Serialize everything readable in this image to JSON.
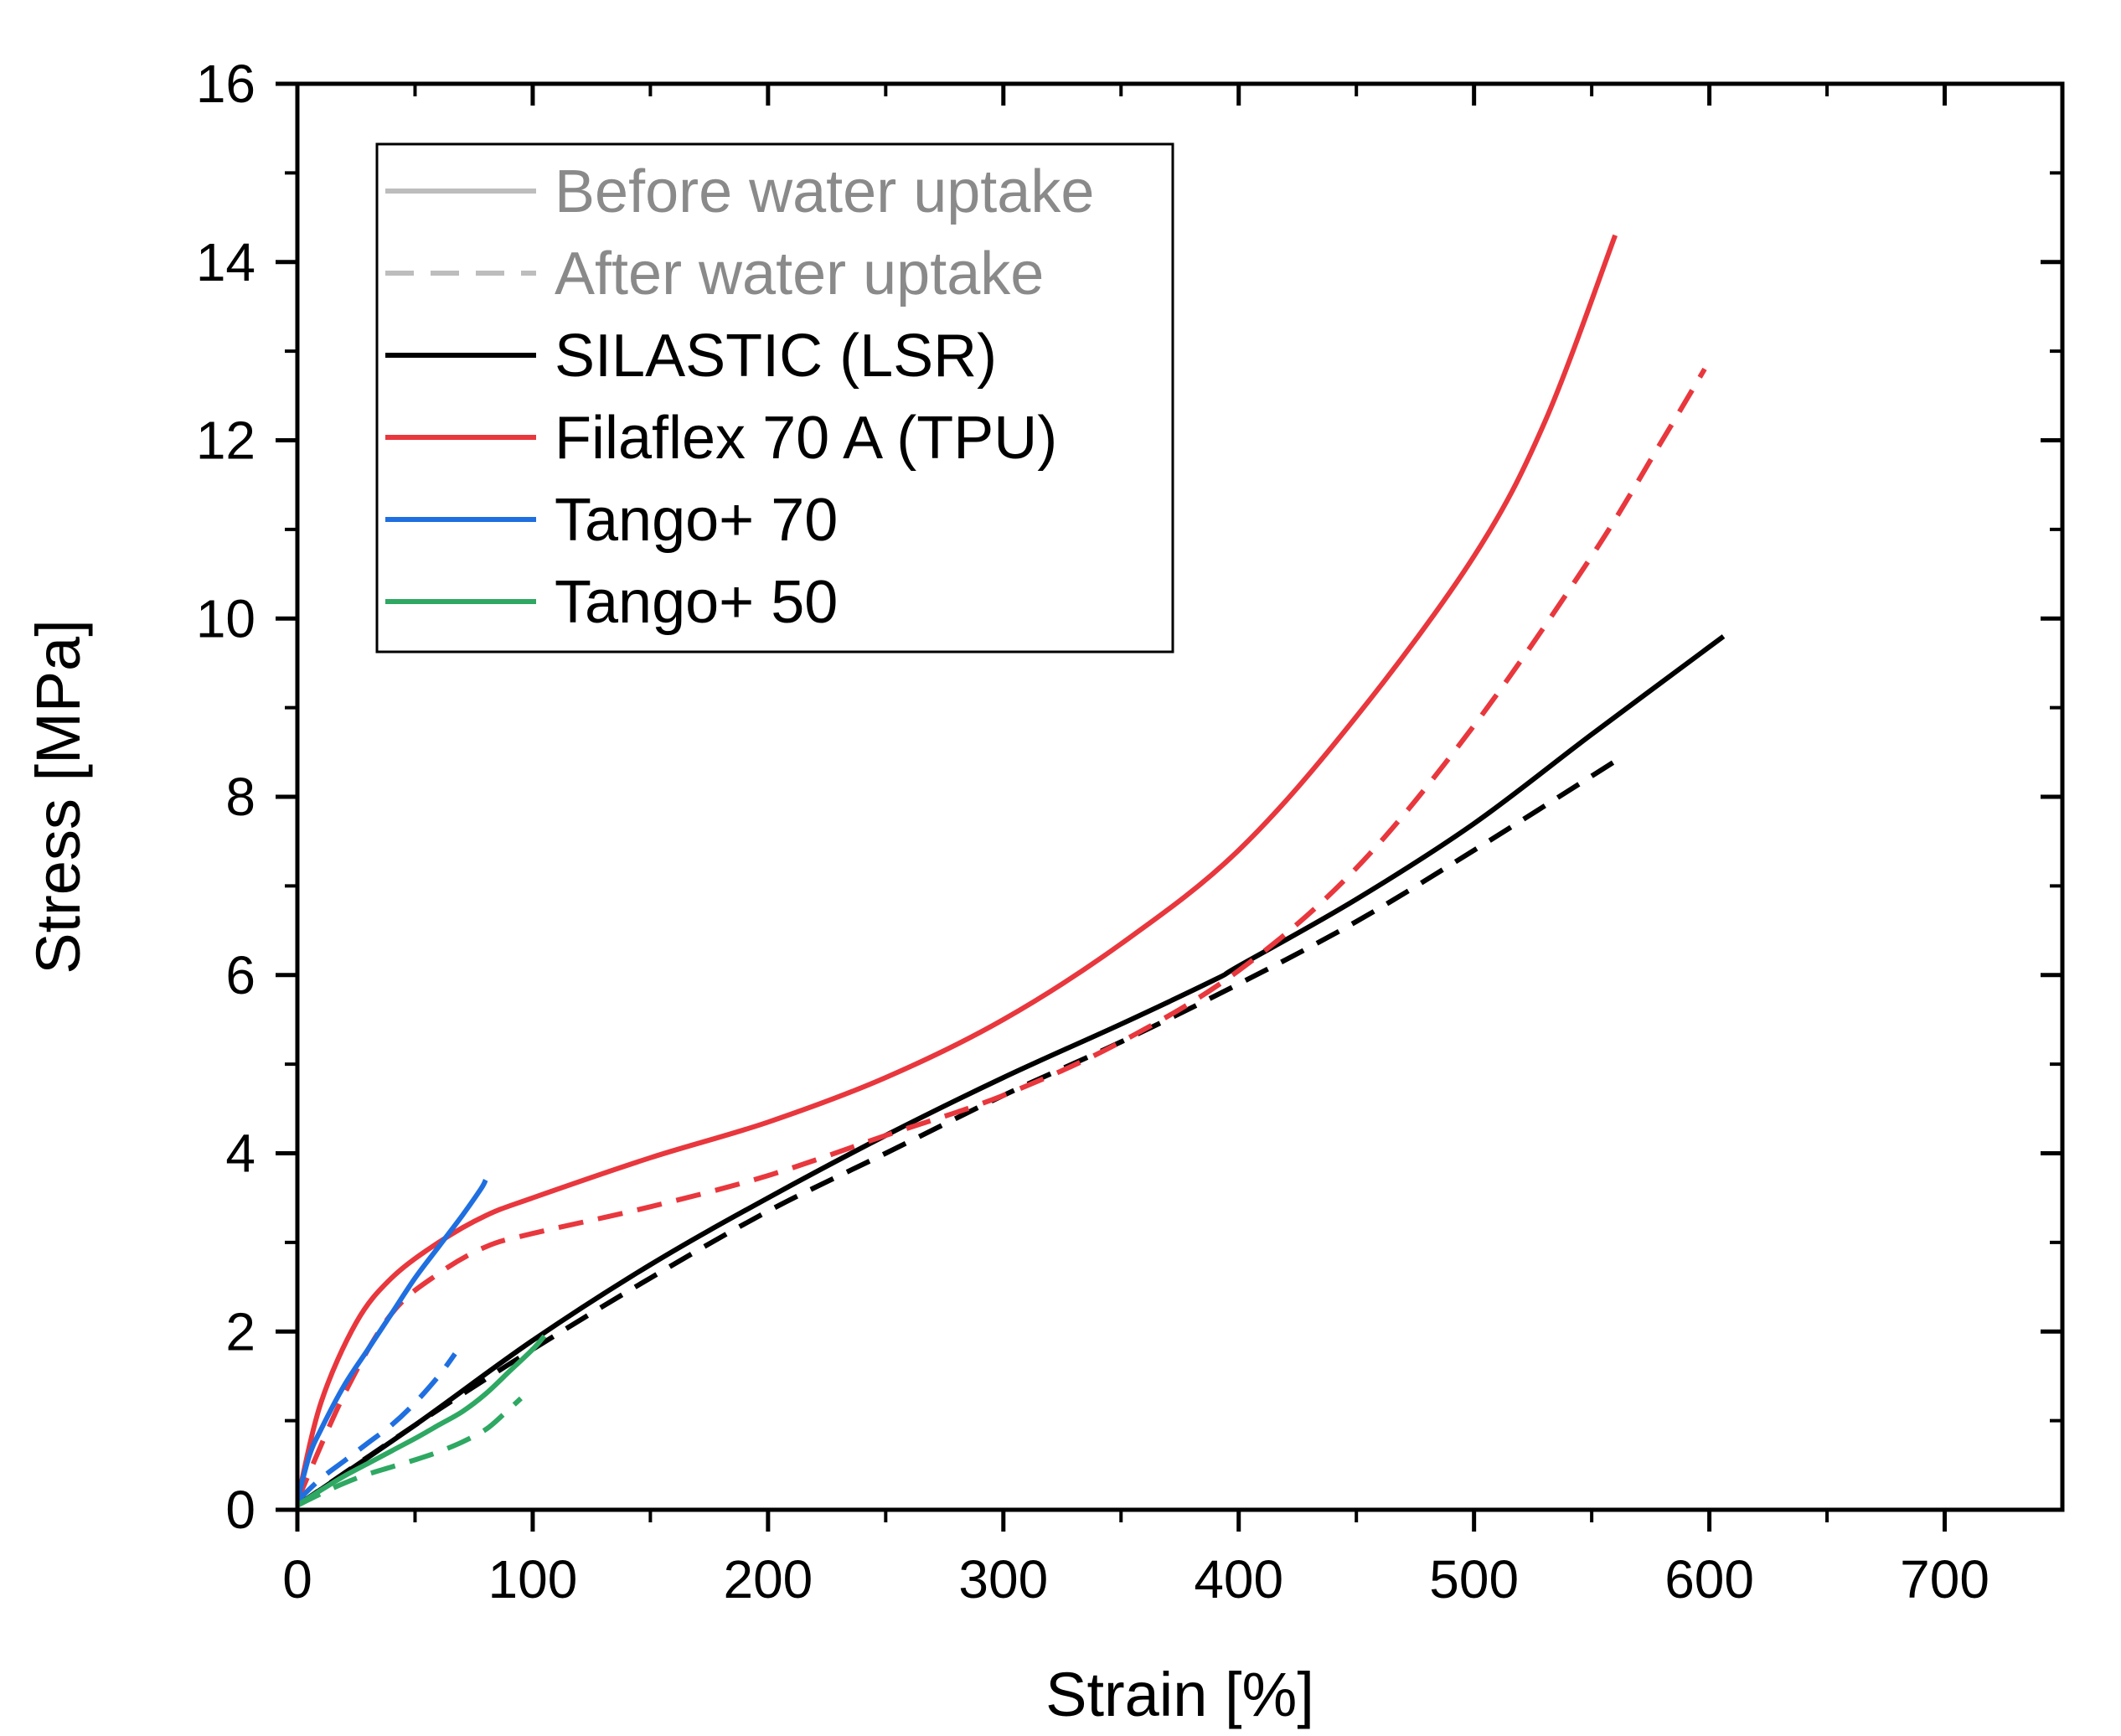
{
  "chart_data": {
    "type": "line",
    "title": "",
    "xlabel": "Strain [%]",
    "ylabel": "Stress [MPa]",
    "xlim": [
      0,
      750
    ],
    "ylim": [
      0,
      16
    ],
    "xticks": [
      0,
      100,
      200,
      300,
      400,
      500,
      600,
      700
    ],
    "yticks": [
      0,
      2,
      4,
      6,
      8,
      10,
      12,
      14,
      16
    ],
    "grid": false,
    "legend_position": "top-left",
    "legend": [
      {
        "label": "Before water uptake",
        "color": "#bdbdbd",
        "style": "solid",
        "muted": true
      },
      {
        "label": "After water uptake",
        "color": "#bdbdbd",
        "style": "dashed",
        "muted": true
      },
      {
        "label": "SILASTIC (LSR)",
        "color": "#000000",
        "style": "solid",
        "muted": false
      },
      {
        "label": "Filaflex 70 A (TPU)",
        "color": "#e8373d",
        "style": "solid",
        "muted": false
      },
      {
        "label": "Tango+ 70",
        "color": "#1f6fe0",
        "style": "solid",
        "muted": false
      },
      {
        "label": "Tango+ 50",
        "color": "#2ea862",
        "style": "solid",
        "muted": false
      }
    ],
    "series": [
      {
        "name": "SILASTIC (LSR) - before water uptake",
        "color": "#000000",
        "dashed": false,
        "x": [
          0,
          50,
          100,
          150,
          200,
          250,
          300,
          350,
          390,
          400,
          450,
          500,
          550,
          606
        ],
        "y": [
          0.05,
          0.95,
          1.9,
          2.75,
          3.5,
          4.2,
          4.85,
          5.45,
          5.95,
          6.1,
          6.85,
          7.7,
          8.7,
          9.8
        ]
      },
      {
        "name": "SILASTIC (LSR) - after water uptake",
        "color": "#000000",
        "dashed": true,
        "x": [
          0,
          50,
          100,
          150,
          200,
          250,
          300,
          350,
          400,
          450,
          500,
          563
        ],
        "y": [
          0.05,
          0.95,
          1.8,
          2.6,
          3.35,
          4.0,
          4.65,
          5.25,
          5.9,
          6.6,
          7.4,
          8.45
        ]
      },
      {
        "name": "Filaflex 70 A (TPU) - before water uptake",
        "color": "#e8373d",
        "dashed": false,
        "x": [
          0,
          10,
          25,
          40,
          60,
          80,
          100,
          150,
          200,
          250,
          300,
          350,
          400,
          450,
          500,
          530,
          560
        ],
        "y": [
          0.1,
          1.2,
          2.1,
          2.6,
          3.0,
          3.3,
          3.5,
          3.95,
          4.35,
          4.85,
          5.5,
          6.35,
          7.4,
          8.9,
          10.7,
          12.2,
          14.3
        ]
      },
      {
        "name": "Filaflex 70 A (TPU) - after water uptake",
        "color": "#e8373d",
        "dashed": true,
        "x": [
          0,
          20,
          40,
          60,
          80,
          100,
          150,
          200,
          250,
          300,
          350,
          400,
          450,
          500,
          550,
          580,
          598
        ],
        "y": [
          0.1,
          1.3,
          2.2,
          2.65,
          2.95,
          3.1,
          3.4,
          3.75,
          4.2,
          4.65,
          5.25,
          6.05,
          7.2,
          8.8,
          10.7,
          12.0,
          12.8
        ]
      },
      {
        "name": "Tango+ 70 - before water uptake",
        "color": "#1f6fe0",
        "dashed": false,
        "x": [
          0,
          5,
          10,
          20,
          30,
          40,
          50,
          60,
          70,
          78,
          80
        ],
        "y": [
          0.1,
          0.6,
          0.9,
          1.4,
          1.8,
          2.2,
          2.6,
          2.95,
          3.3,
          3.6,
          3.7
        ]
      },
      {
        "name": "Tango+ 70 - after water uptake",
        "color": "#1f6fe0",
        "dashed": true,
        "x": [
          0,
          10,
          20,
          30,
          40,
          50,
          60,
          67
        ],
        "y": [
          0.1,
          0.35,
          0.55,
          0.75,
          0.95,
          1.2,
          1.5,
          1.75
        ]
      },
      {
        "name": "Tango+ 50 - before water uptake",
        "color": "#2ea862",
        "dashed": false,
        "x": [
          0,
          10,
          20,
          30,
          40,
          50,
          60,
          70,
          80,
          90,
          100,
          105
        ],
        "y": [
          0.05,
          0.22,
          0.38,
          0.52,
          0.66,
          0.8,
          0.95,
          1.1,
          1.3,
          1.55,
          1.8,
          1.95
        ]
      },
      {
        "name": "Tango+ 50 - after water uptake",
        "color": "#2ea862",
        "dashed": true,
        "x": [
          0,
          10,
          20,
          30,
          40,
          50,
          60,
          70,
          80,
          88,
          95
        ],
        "y": [
          0.05,
          0.18,
          0.3,
          0.4,
          0.48,
          0.56,
          0.65,
          0.76,
          0.9,
          1.08,
          1.25
        ]
      }
    ]
  }
}
